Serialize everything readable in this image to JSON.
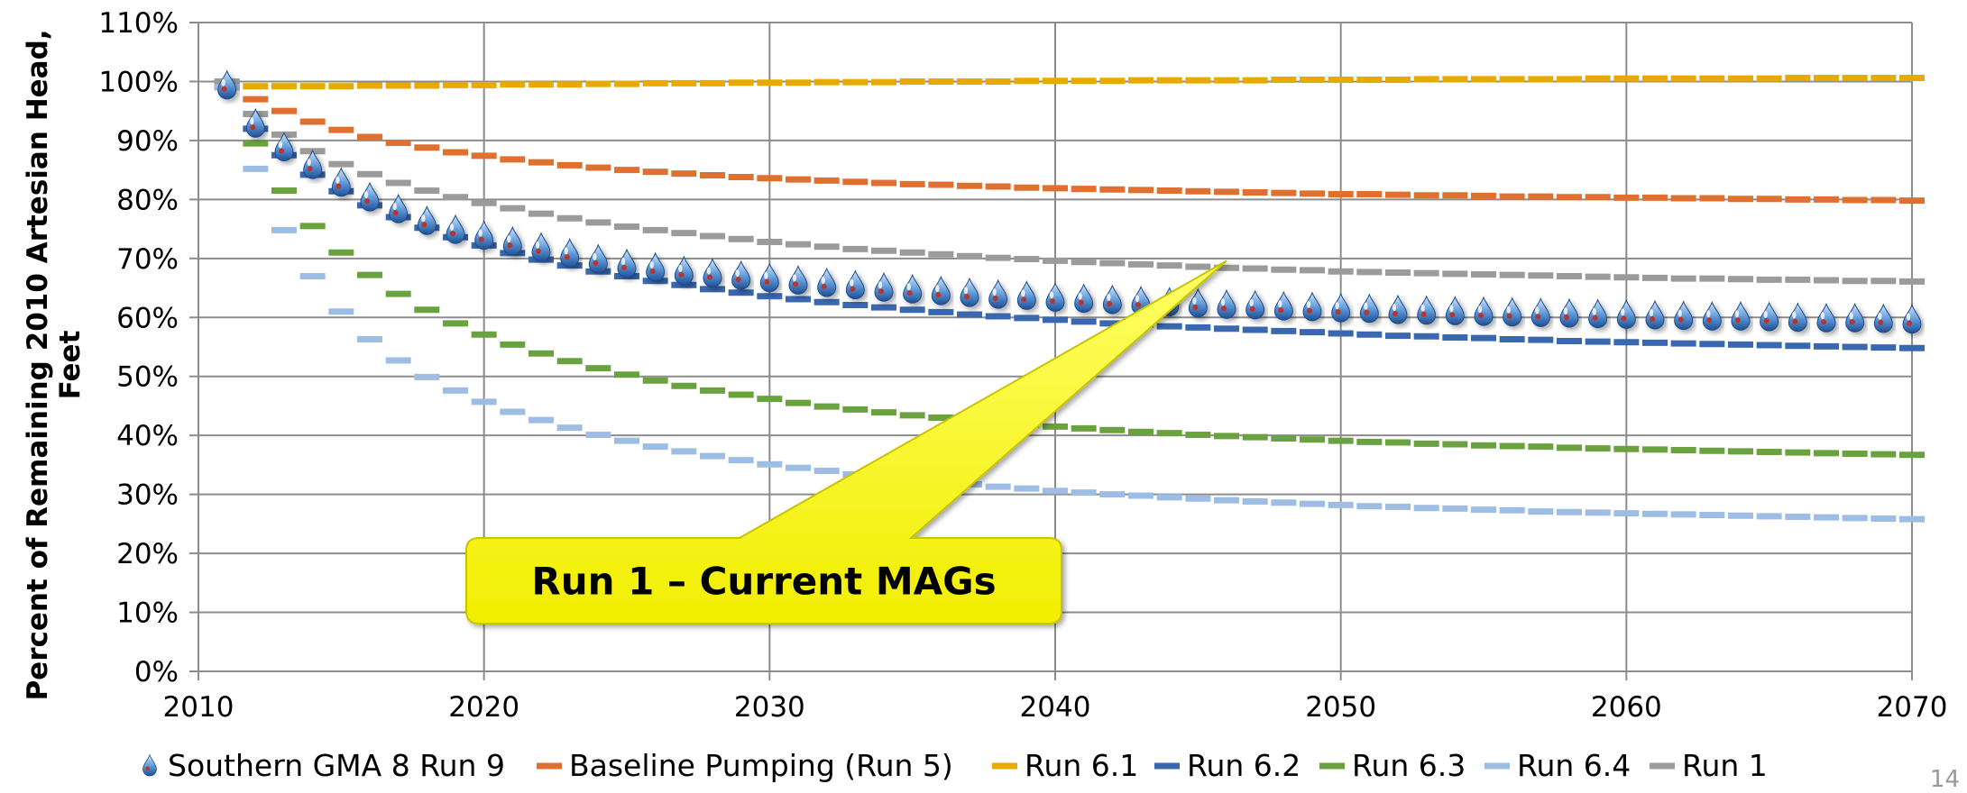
{
  "chart_data": {
    "type": "line",
    "ylabel_line1": "Percent of Remaining 2010 Artesian Head,",
    "ylabel_line2": "Feet",
    "xlim": [
      2010,
      2070
    ],
    "ylim": [
      0,
      110
    ],
    "x_ticks": [
      2010,
      2020,
      2030,
      2040,
      2050,
      2060,
      2070
    ],
    "y_ticks": [
      0,
      10,
      20,
      30,
      40,
      50,
      60,
      70,
      80,
      90,
      100,
      110
    ],
    "y_tick_format": "percent",
    "grid": true,
    "legend_position": "bottom",
    "series": [
      {
        "name": "Southern GMA 8 Run 9",
        "color": "#4a7fc1",
        "marker": "water-drop-icon",
        "x": [
          2011,
          2012,
          2013,
          2014,
          2015,
          2016,
          2017,
          2018,
          2019,
          2020,
          2021,
          2022,
          2023,
          2024,
          2025,
          2026,
          2027,
          2028,
          2029,
          2030,
          2031,
          2032,
          2033,
          2034,
          2035,
          2036,
          2037,
          2038,
          2039,
          2040,
          2041,
          2042,
          2043,
          2044,
          2045,
          2046,
          2047,
          2048,
          2049,
          2050,
          2051,
          2052,
          2053,
          2054,
          2055,
          2056,
          2057,
          2058,
          2059,
          2060,
          2061,
          2062,
          2063,
          2064,
          2065,
          2066,
          2067,
          2068,
          2069,
          2070
        ],
        "y": [
          99.5,
          93,
          89,
          86,
          83,
          80.5,
          78.5,
          76.5,
          75,
          74,
          73,
          72,
          71,
          70,
          69.2,
          68.6,
          68,
          67.6,
          67.2,
          66.8,
          66.4,
          66,
          65.6,
          65.2,
          64.9,
          64.6,
          64.3,
          64,
          63.8,
          63.5,
          63.3,
          63.1,
          62.9,
          62.7,
          62.5,
          62.3,
          62.2,
          62,
          61.9,
          61.7,
          61.6,
          61.4,
          61.3,
          61.2,
          61.1,
          61,
          60.9,
          60.8,
          60.7,
          60.6,
          60.5,
          60.4,
          60.3,
          60.3,
          60.2,
          60.1,
          60,
          60,
          59.9,
          59.8
        ]
      },
      {
        "name": "Baseline Pumping (Run 5)",
        "color": "#e07030",
        "x": [
          2011,
          2012,
          2013,
          2014,
          2015,
          2016,
          2017,
          2018,
          2019,
          2020,
          2021,
          2022,
          2023,
          2024,
          2025,
          2026,
          2027,
          2028,
          2029,
          2030,
          2031,
          2032,
          2033,
          2034,
          2035,
          2036,
          2037,
          2038,
          2039,
          2040,
          2041,
          2042,
          2043,
          2044,
          2045,
          2046,
          2047,
          2048,
          2049,
          2050,
          2051,
          2052,
          2053,
          2054,
          2055,
          2056,
          2057,
          2058,
          2059,
          2060,
          2061,
          2062,
          2063,
          2064,
          2065,
          2066,
          2067,
          2068,
          2069,
          2070
        ],
        "y": [
          100,
          97,
          95,
          93.2,
          91.8,
          90.6,
          89.6,
          88.8,
          88,
          87.4,
          86.8,
          86.3,
          85.8,
          85.4,
          85,
          84.7,
          84.4,
          84.1,
          83.8,
          83.6,
          83.4,
          83.2,
          83,
          82.8,
          82.6,
          82.5,
          82.3,
          82.2,
          82,
          81.9,
          81.8,
          81.7,
          81.6,
          81.5,
          81.4,
          81.3,
          81.2,
          81.1,
          81,
          80.9,
          80.9,
          80.8,
          80.7,
          80.7,
          80.6,
          80.5,
          80.5,
          80.4,
          80.4,
          80.3,
          80.3,
          80.2,
          80.2,
          80.1,
          80.1,
          80,
          80,
          79.9,
          79.9,
          79.8
        ]
      },
      {
        "name": "Run 6.1",
        "color": "#e8aa00",
        "x": [
          2011,
          2012,
          2013,
          2014,
          2015,
          2016,
          2017,
          2018,
          2019,
          2020,
          2021,
          2022,
          2023,
          2024,
          2025,
          2026,
          2027,
          2028,
          2029,
          2030,
          2031,
          2032,
          2033,
          2034,
          2035,
          2036,
          2037,
          2038,
          2039,
          2040,
          2041,
          2042,
          2043,
          2044,
          2045,
          2046,
          2047,
          2048,
          2049,
          2050,
          2051,
          2052,
          2053,
          2054,
          2055,
          2056,
          2057,
          2058,
          2059,
          2060,
          2061,
          2062,
          2063,
          2064,
          2065,
          2066,
          2067,
          2068,
          2069,
          2070
        ],
        "y": [
          99.3,
          99.2,
          99.2,
          99.2,
          99.2,
          99.3,
          99.3,
          99.3,
          99.4,
          99.4,
          99.5,
          99.5,
          99.5,
          99.6,
          99.6,
          99.7,
          99.7,
          99.7,
          99.8,
          99.8,
          99.8,
          99.9,
          99.9,
          99.9,
          100,
          100,
          100,
          100,
          100.1,
          100.1,
          100.1,
          100.1,
          100.2,
          100.2,
          100.2,
          100.2,
          100.2,
          100.3,
          100.3,
          100.3,
          100.3,
          100.3,
          100.4,
          100.4,
          100.4,
          100.4,
          100.4,
          100.4,
          100.5,
          100.5,
          100.5,
          100.5,
          100.5,
          100.5,
          100.5,
          100.6,
          100.6,
          100.6,
          100.6,
          100.6
        ]
      },
      {
        "name": "Run 6.2",
        "color": "#3a68b0",
        "x": [
          2011,
          2012,
          2013,
          2014,
          2015,
          2016,
          2017,
          2018,
          2019,
          2020,
          2021,
          2022,
          2023,
          2024,
          2025,
          2026,
          2027,
          2028,
          2029,
          2030,
          2031,
          2032,
          2033,
          2034,
          2035,
          2036,
          2037,
          2038,
          2039,
          2040,
          2041,
          2042,
          2043,
          2044,
          2045,
          2046,
          2047,
          2048,
          2049,
          2050,
          2051,
          2052,
          2053,
          2054,
          2055,
          2056,
          2057,
          2058,
          2059,
          2060,
          2061,
          2062,
          2063,
          2064,
          2065,
          2066,
          2067,
          2068,
          2069,
          2070
        ],
        "y": [
          99,
          92,
          87.5,
          84.2,
          81.4,
          79,
          77,
          75.2,
          73.6,
          72.2,
          70.9,
          69.8,
          68.8,
          67.8,
          67,
          66.2,
          65.5,
          64.8,
          64.2,
          63.6,
          63.1,
          62.6,
          62.1,
          61.7,
          61.3,
          60.9,
          60.5,
          60.2,
          59.9,
          59.6,
          59.3,
          59,
          58.8,
          58.5,
          58.3,
          58.1,
          57.9,
          57.7,
          57.5,
          57.3,
          57.1,
          56.9,
          56.8,
          56.6,
          56.5,
          56.3,
          56.2,
          56,
          55.9,
          55.8,
          55.7,
          55.6,
          55.5,
          55.4,
          55.3,
          55.2,
          55.1,
          55,
          54.9,
          54.8
        ]
      },
      {
        "name": "Run 6.3",
        "color": "#6aa23f",
        "x": [
          2011,
          2012,
          2013,
          2014,
          2015,
          2016,
          2017,
          2018,
          2019,
          2020,
          2021,
          2022,
          2023,
          2024,
          2025,
          2026,
          2027,
          2028,
          2029,
          2030,
          2031,
          2032,
          2033,
          2034,
          2035,
          2036,
          2037,
          2038,
          2039,
          2040,
          2041,
          2042,
          2043,
          2044,
          2045,
          2046,
          2047,
          2048,
          2049,
          2050,
          2051,
          2052,
          2053,
          2054,
          2055,
          2056,
          2057,
          2058,
          2059,
          2060,
          2061,
          2062,
          2063,
          2064,
          2065,
          2066,
          2067,
          2068,
          2069,
          2070
        ],
        "y": [
          99,
          89.5,
          81.5,
          75.5,
          71,
          67.2,
          64,
          61.3,
          59,
          57.1,
          55.4,
          53.9,
          52.6,
          51.4,
          50.3,
          49.3,
          48.4,
          47.6,
          46.9,
          46.2,
          45.5,
          44.9,
          44.4,
          43.9,
          43.4,
          43,
          42.6,
          42.2,
          41.8,
          41.5,
          41.2,
          40.9,
          40.6,
          40.4,
          40.1,
          39.9,
          39.7,
          39.5,
          39.3,
          39.1,
          38.9,
          38.8,
          38.6,
          38.5,
          38.3,
          38.2,
          38.1,
          37.9,
          37.8,
          37.7,
          37.6,
          37.5,
          37.4,
          37.3,
          37.2,
          37.1,
          37,
          36.9,
          36.8,
          36.7
        ]
      },
      {
        "name": "Run 6.4",
        "color": "#9dbde4",
        "x": [
          2011,
          2012,
          2013,
          2014,
          2015,
          2016,
          2017,
          2018,
          2019,
          2020,
          2021,
          2022,
          2023,
          2024,
          2025,
          2026,
          2027,
          2028,
          2029,
          2030,
          2031,
          2032,
          2033,
          2034,
          2035,
          2036,
          2037,
          2038,
          2039,
          2040,
          2041,
          2042,
          2043,
          2044,
          2045,
          2046,
          2047,
          2048,
          2049,
          2050,
          2051,
          2052,
          2053,
          2054,
          2055,
          2056,
          2057,
          2058,
          2059,
          2060,
          2061,
          2062,
          2063,
          2064,
          2065,
          2066,
          2067,
          2068,
          2069,
          2070
        ],
        "y": [
          99,
          85.2,
          74.8,
          67,
          61,
          56.3,
          52.7,
          49.9,
          47.6,
          45.7,
          44,
          42.6,
          41.3,
          40.1,
          39.1,
          38.1,
          37.3,
          36.5,
          35.8,
          35.1,
          34.5,
          34,
          33.4,
          32.9,
          32.5,
          32.1,
          31.7,
          31.3,
          31,
          30.6,
          30.3,
          30,
          29.8,
          29.5,
          29.3,
          29,
          28.8,
          28.6,
          28.4,
          28.2,
          28,
          27.9,
          27.7,
          27.6,
          27.4,
          27.3,
          27.1,
          27,
          26.9,
          26.8,
          26.7,
          26.6,
          26.5,
          26.4,
          26.3,
          26.2,
          26.1,
          26,
          25.9,
          25.8
        ]
      },
      {
        "name": "Run 1",
        "color": "#9b9b9b",
        "x": [
          2011,
          2012,
          2013,
          2014,
          2015,
          2016,
          2017,
          2018,
          2019,
          2020,
          2021,
          2022,
          2023,
          2024,
          2025,
          2026,
          2027,
          2028,
          2029,
          2030,
          2031,
          2032,
          2033,
          2034,
          2035,
          2036,
          2037,
          2038,
          2039,
          2040,
          2041,
          2042,
          2043,
          2044,
          2045,
          2046,
          2047,
          2048,
          2049,
          2050,
          2051,
          2052,
          2053,
          2054,
          2055,
          2056,
          2057,
          2058,
          2059,
          2060,
          2061,
          2062,
          2063,
          2064,
          2065,
          2066,
          2067,
          2068,
          2069,
          2070
        ],
        "y": [
          100,
          94.5,
          91,
          88.2,
          86,
          84.3,
          82.8,
          81.5,
          80.4,
          79.4,
          78.5,
          77.6,
          76.8,
          76.1,
          75.4,
          74.8,
          74.3,
          73.8,
          73.3,
          72.8,
          72.4,
          72,
          71.6,
          71.3,
          71,
          70.7,
          70.4,
          70.1,
          69.9,
          69.6,
          69.4,
          69.2,
          69,
          68.8,
          68.6,
          68.4,
          68.3,
          68.1,
          68,
          67.8,
          67.7,
          67.6,
          67.5,
          67.4,
          67.3,
          67.2,
          67.1,
          67,
          66.9,
          66.8,
          66.7,
          66.6,
          66.6,
          66.5,
          66.4,
          66.4,
          66.3,
          66.2,
          66.2,
          66.1
        ]
      }
    ],
    "annotations": [
      {
        "text": "Run 1 – Current MAGs",
        "points_to": {
          "x": 2046,
          "y": 69.6
        }
      }
    ]
  },
  "page_number": "14"
}
